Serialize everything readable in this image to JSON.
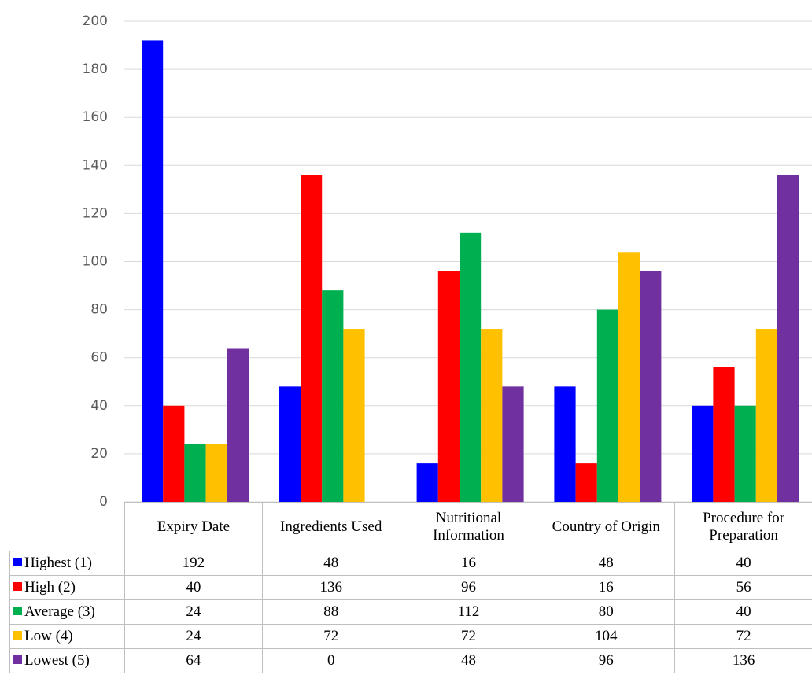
{
  "chart_data": {
    "type": "bar",
    "categories": [
      "Expiry Date",
      "Ingredients Used",
      "Nutritional Information",
      "Country of Origin",
      "Procedure for Preparation"
    ],
    "series": [
      {
        "name": "Highest (1)",
        "color": "#0000ff",
        "values": [
          192,
          48,
          16,
          48,
          40
        ]
      },
      {
        "name": "High (2)",
        "color": "#ff0000",
        "values": [
          40,
          136,
          96,
          16,
          56
        ]
      },
      {
        "name": "Average (3)",
        "color": "#00b050",
        "values": [
          24,
          88,
          112,
          80,
          40
        ]
      },
      {
        "name": "Low (4)",
        "color": "#ffc000",
        "values": [
          24,
          72,
          72,
          104,
          72
        ]
      },
      {
        "name": "Lowest (5)",
        "color": "#7030a0",
        "values": [
          64,
          0,
          48,
          96,
          136
        ]
      }
    ],
    "ylim": [
      0,
      200
    ],
    "yticks": [
      0,
      20,
      40,
      60,
      80,
      100,
      120,
      140,
      160,
      180,
      200
    ],
    "grid": true,
    "data_table": true
  }
}
